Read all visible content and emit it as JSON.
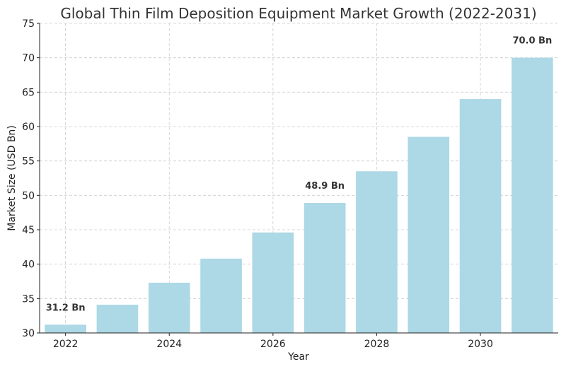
{
  "chart_data": {
    "type": "bar",
    "title": "Global Thin Film Deposition Equipment Market Growth (2022-2031)",
    "xlabel": "Year",
    "ylabel": "Market Size (USD Bn)",
    "categories": [
      2022,
      2023,
      2024,
      2025,
      2026,
      2027,
      2028,
      2029,
      2030,
      2031
    ],
    "values": [
      31.2,
      34.1,
      37.3,
      40.8,
      44.6,
      48.9,
      53.5,
      58.5,
      64.0,
      70.0
    ],
    "ylim": [
      30,
      75
    ],
    "yticks": [
      30,
      35,
      40,
      45,
      50,
      55,
      60,
      65,
      70,
      75
    ],
    "xticks": [
      2022,
      2024,
      2026,
      2028,
      2030
    ],
    "annotations": [
      {
        "year": 2022,
        "text": "31.2 Bn"
      },
      {
        "year": 2027,
        "text": "48.9 Bn"
      },
      {
        "year": 2031,
        "text": "70.0 Bn"
      }
    ],
    "grid": true,
    "bar_color": "#add8e6"
  }
}
